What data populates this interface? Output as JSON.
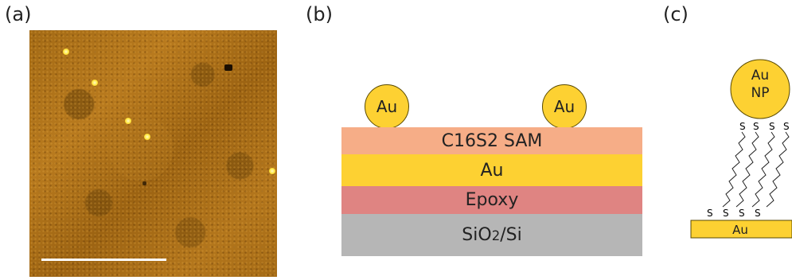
{
  "panels": {
    "a": {
      "label": "(a)"
    },
    "b": {
      "label": "(b)",
      "nanoparticle_left": "Au",
      "nanoparticle_right": "Au",
      "layers": {
        "sam": "C16S2 SAM",
        "au": "Au",
        "epoxy": "Epoxy",
        "substrate": "SiO2/Si"
      },
      "colors": {
        "sam": "#f6ad87",
        "au": "#fdd132",
        "epoxy": "#df8482",
        "substrate": "#b6b6b6"
      }
    },
    "c": {
      "label": "(c)",
      "np_line1": "Au",
      "np_line2": "NP",
      "sulfur": "S",
      "base_label": "Au"
    }
  }
}
